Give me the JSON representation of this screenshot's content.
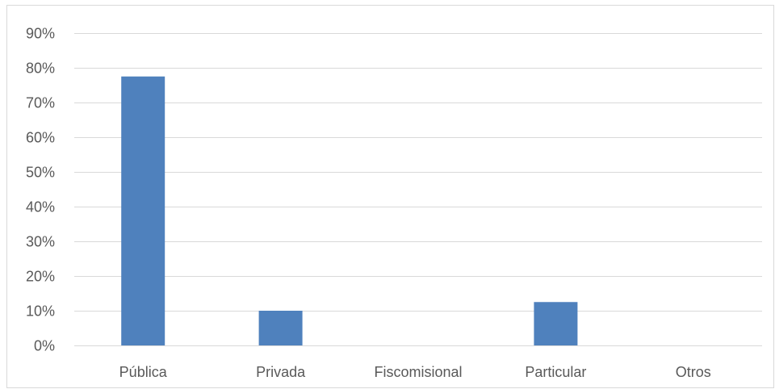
{
  "chart_data": {
    "type": "bar",
    "categories": [
      "Pública",
      "Privada",
      "Fiscomisional",
      "Particular",
      "Otros"
    ],
    "values": [
      0.775,
      0.1,
      0.0,
      0.125,
      0.0
    ],
    "title": "",
    "xlabel": "",
    "ylabel": "",
    "ylim": [
      0,
      0.9
    ],
    "y_ticks": [
      0,
      0.1,
      0.2,
      0.3,
      0.4,
      0.5,
      0.6,
      0.7,
      0.8,
      0.9
    ],
    "y_tick_labels": [
      "0%",
      "10%",
      "20%",
      "30%",
      "40%",
      "50%",
      "60%",
      "70%",
      "80%",
      "90%"
    ],
    "grid": true,
    "legend": "none",
    "colors": {
      "bar": "#4f81bd",
      "grid": "#d9d9d9",
      "text": "#595959"
    }
  }
}
